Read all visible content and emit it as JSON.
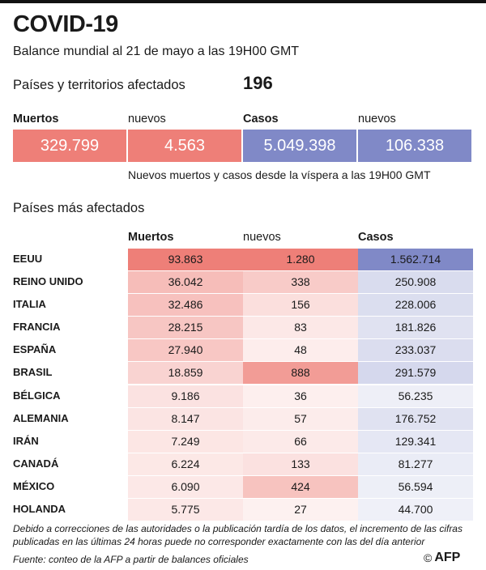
{
  "header": {
    "title": "COVID-19",
    "subtitle": "Balance mundial al 21 de mayo a las 19H00 GMT",
    "countries_label": "Países y territorios afectados",
    "countries_value": "196"
  },
  "summary": {
    "labels": [
      "Muertos",
      "nuevos",
      "Casos",
      "nuevos"
    ],
    "values": [
      "329.799",
      "4.563",
      "5.049.398",
      "106.338"
    ],
    "note": "Nuevos muertos y casos desde la víspera a las 19H00 GMT"
  },
  "table": {
    "title": "Países más afectados",
    "headers": [
      "Muertos",
      "nuevos",
      "Casos"
    ],
    "rows": [
      {
        "country": "EEUU",
        "deaths": "93.863",
        "new": "1.280",
        "cases": "1.562.714"
      },
      {
        "country": "REINO UNIDO",
        "deaths": "36.042",
        "new": "338",
        "cases": "250.908"
      },
      {
        "country": "ITALIA",
        "deaths": "32.486",
        "new": "156",
        "cases": "228.006"
      },
      {
        "country": "FRANCIA",
        "deaths": "28.215",
        "new": "83",
        "cases": "181.826"
      },
      {
        "country": "ESPAÑA",
        "deaths": "27.940",
        "new": "48",
        "cases": "233.037"
      },
      {
        "country": "BRASIL",
        "deaths": "18.859",
        "new": "888",
        "cases": "291.579"
      },
      {
        "country": "BÉLGICA",
        "deaths": "9.186",
        "new": "36",
        "cases": "56.235"
      },
      {
        "country": "ALEMANIA",
        "deaths": "8.147",
        "new": "57",
        "cases": "176.752"
      },
      {
        "country": "IRÁN",
        "deaths": "7.249",
        "new": "66",
        "cases": "129.341"
      },
      {
        "country": "CANADÁ",
        "deaths": "6.224",
        "new": "133",
        "cases": "81.277"
      },
      {
        "country": "MÉXICO",
        "deaths": "6.090",
        "new": "424",
        "cases": "56.594"
      },
      {
        "country": "HOLANDA",
        "deaths": "5.775",
        "new": "27",
        "cases": "44.700"
      }
    ]
  },
  "footnote": "Debido a correcciones de las autoridades o la publicación tardía de los datos, el incremento de las cifras publicadas en las últimas 24 horas puede no corresponder exactamente con las del día anterior",
  "source": "Fuente: conteo de la AFP a partir de balances oficiales",
  "credit": {
    "symbol": "©",
    "agency": "AFP"
  },
  "colors": {
    "deaths": "#ee7f78",
    "cases": "#8089c7"
  }
}
